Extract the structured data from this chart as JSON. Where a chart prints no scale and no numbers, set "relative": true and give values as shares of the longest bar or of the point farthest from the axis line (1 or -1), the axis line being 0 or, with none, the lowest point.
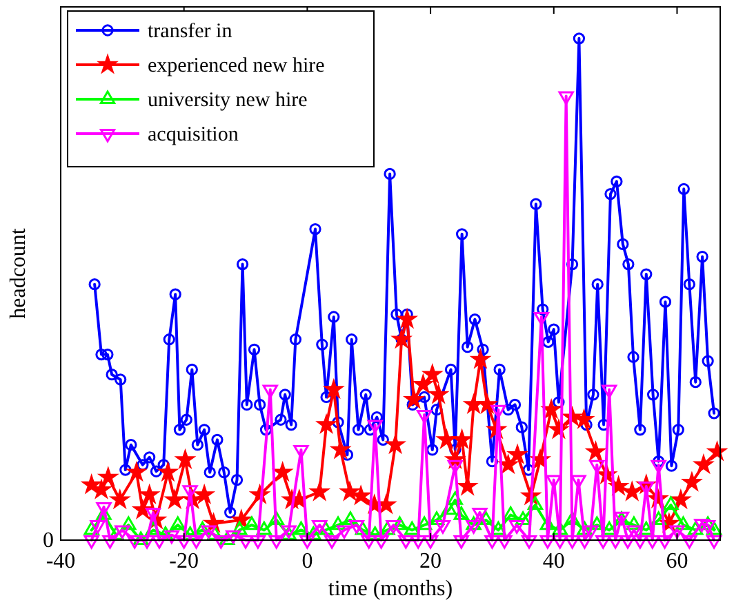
{
  "chart_data": {
    "type": "line",
    "xlabel": "time (months)",
    "ylabel": "headcount",
    "relative": true,
    "xlim": [
      -40,
      67
    ],
    "xticks": [
      -40,
      -20,
      0,
      20,
      40,
      60
    ],
    "annotations": [
      "0"
    ],
    "grid": false,
    "legend": "top left",
    "line_style": "solid",
    "series": [
      {
        "name": "transfer in",
        "color": "#0000ff",
        "marker": "circle",
        "x": [
          -34.5,
          -33.4,
          -32.4,
          -31.7,
          -30.3,
          -29.5,
          -28.6,
          -26.7,
          -25.6,
          -24.5,
          -23.3,
          -22.4,
          -21.4,
          -20.7,
          -19.6,
          -18.7,
          -17.8,
          -16.7,
          -15.8,
          -14.6,
          -13.5,
          -12.5,
          -11.4,
          -10.5,
          -9.8,
          -8.6,
          -7.7,
          -6.7,
          -4.3,
          -3.6,
          -2.6,
          -1.9,
          1.3,
          2.4,
          3.1,
          4.3,
          5,
          6.5,
          7.2,
          8.3,
          9.5,
          10.2,
          11.3,
          12.3,
          13.4,
          14.5,
          15.3,
          16.2,
          17.1,
          19,
          20.3,
          21,
          23.3,
          24,
          25.1,
          26,
          27.2,
          28.5,
          30,
          31.2,
          32.6,
          33.7,
          34.8,
          35.9,
          37.1,
          38.2,
          39.1,
          40,
          40.8,
          43,
          44.1,
          45.3,
          46.4,
          47.1,
          48.1,
          49.2,
          50.2,
          51.2,
          52.1,
          52.9,
          54,
          55,
          56.1,
          57,
          58.1,
          59.1,
          60.2,
          61.1,
          62,
          63,
          64.1,
          65,
          66
        ],
        "values": [
          0.51,
          0.37,
          0.37,
          0.33,
          0.32,
          0.14,
          0.19,
          0.15,
          0.165,
          0.137,
          0.15,
          0.4,
          0.49,
          0.22,
          0.24,
          0.34,
          0.19,
          0.22,
          0.135,
          0.2,
          0.135,
          0.055,
          0.12,
          0.55,
          0.27,
          0.38,
          0.27,
          0.22,
          0.24,
          0.29,
          0.23,
          0.4,
          0.62,
          0.39,
          0.285,
          0.445,
          0.235,
          0.17,
          0.4,
          0.22,
          0.29,
          0.22,
          0.245,
          0.2,
          0.73,
          0.45,
          0.4,
          0.45,
          0.27,
          0.285,
          0.18,
          0.26,
          0.34,
          0.18,
          0.61,
          0.385,
          0.44,
          0.38,
          0.157,
          0.34,
          0.26,
          0.27,
          0.225,
          0.14,
          0.67,
          0.46,
          0.395,
          0.42,
          0.275,
          0.55,
          1.0,
          0.23,
          0.29,
          0.51,
          0.23,
          0.69,
          0.715,
          0.59,
          0.55,
          0.365,
          0.22,
          0.53,
          0.29,
          0.157,
          0.475,
          0.148,
          0.22,
          0.7,
          0.51,
          0.315,
          0.565,
          0.357,
          0.253
        ]
      },
      {
        "name": "experienced new hire",
        "color": "#ff0000",
        "marker": "star",
        "x": [
          -35,
          -33.4,
          -32.3,
          -30.4,
          -27.7,
          -26.7,
          -25.6,
          -24.5,
          -22.6,
          -21.5,
          -19.8,
          -18.6,
          -16.7,
          -15.2,
          -10.7,
          -7.7,
          -4,
          -2.5,
          -1.3,
          2,
          3.1,
          4.3,
          5.4,
          6.9,
          8.7,
          10.9,
          12.8,
          14.3,
          15.3,
          16.2,
          17.3,
          18.8,
          20.3,
          21.3,
          22.6,
          24,
          25.1,
          26,
          27,
          28.1,
          29.2,
          30.7,
          32.6,
          34.1,
          36.3,
          37.8,
          39.6,
          40.8,
          43,
          44.9,
          46.8,
          48.6,
          50.5,
          52.7,
          55,
          56.9,
          58.7,
          60.6,
          62.4,
          64.3,
          66.5
        ],
        "values": [
          0.11,
          0.1,
          0.125,
          0.08,
          0.135,
          0.06,
          0.09,
          0.04,
          0.135,
          0.08,
          0.16,
          0.08,
          0.09,
          0.033,
          0.04,
          0.09,
          0.135,
          0.08,
          0.08,
          0.096,
          0.23,
          0.3,
          0.18,
          0.096,
          0.088,
          0.07,
          0.07,
          0.19,
          0.4,
          0.44,
          0.28,
          0.31,
          0.33,
          0.29,
          0.2,
          0.16,
          0.2,
          0.107,
          0.27,
          0.36,
          0.27,
          0.22,
          0.15,
          0.17,
          0.088,
          0.16,
          0.26,
          0.22,
          0.245,
          0.24,
          0.176,
          0.13,
          0.107,
          0.096,
          0.11,
          0.082,
          0.033,
          0.08,
          0.115,
          0.15,
          0.176
        ]
      },
      {
        "name": "university new hire",
        "color": "#00ff00",
        "marker": "triangle",
        "x": [
          -35,
          -33,
          -31,
          -29,
          -27,
          -25,
          -23,
          -21,
          -19,
          -17,
          -15,
          -13,
          -11,
          -9,
          -7,
          -5,
          -3,
          -1,
          1,
          3,
          5,
          7,
          9,
          11,
          13,
          15,
          17,
          19,
          21,
          23,
          24,
          25,
          27,
          29,
          31,
          33,
          35,
          37,
          39,
          41,
          43,
          45,
          47,
          49,
          51,
          53,
          55,
          57,
          59,
          61,
          63,
          65,
          66
        ],
        "values": [
          0.02,
          0.05,
          0.01,
          0.03,
          0,
          0.02,
          0.01,
          0.03,
          0.01,
          0.02,
          0.01,
          0,
          0.02,
          0.03,
          0.02,
          0.04,
          0.01,
          0.02,
          0.01,
          0.02,
          0.03,
          0.04,
          0.02,
          0.01,
          0.02,
          0.03,
          0.02,
          0.03,
          0.04,
          0.06,
          0.08,
          0.05,
          0.03,
          0.04,
          0.02,
          0.05,
          0.04,
          0.07,
          0.03,
          0.02,
          0.04,
          0.02,
          0.03,
          0.02,
          0.04,
          0.03,
          0.02,
          0.04,
          0.07,
          0.03,
          0.02,
          0.03,
          0.02
        ]
      },
      {
        "name": "acquisition",
        "color": "#ff00ff",
        "marker": "triangle-down",
        "x": [
          -35,
          -34,
          -33,
          -32,
          -30,
          -28,
          -26,
          -25,
          -24,
          -22,
          -20,
          -19,
          -18,
          -16,
          -14,
          -12,
          -10,
          -8,
          -6,
          -5,
          -3,
          -1,
          0,
          2,
          4,
          6,
          8,
          10,
          11,
          12,
          14,
          16,
          18,
          19,
          20,
          22,
          24,
          25,
          27,
          28,
          30,
          31,
          32,
          34,
          36,
          38,
          39,
          40,
          41,
          42,
          43,
          44,
          45,
          46,
          47,
          48,
          49,
          50,
          51,
          52,
          53,
          54,
          55,
          56,
          57,
          58,
          60,
          62,
          64,
          65,
          66
        ],
        "values": [
          0,
          0.03,
          0.066,
          0,
          0.02,
          0,
          0,
          0.055,
          0,
          0.01,
          0,
          0.1,
          0,
          0.02,
          0,
          0.01,
          0,
          0,
          0.3,
          0,
          0.02,
          0.18,
          0,
          0.03,
          0,
          0.02,
          0.03,
          0,
          0.23,
          0,
          0.03,
          0,
          0,
          0.25,
          0,
          0.03,
          0.15,
          0,
          0.03,
          0.055,
          0,
          0.26,
          0,
          0.03,
          0,
          0.445,
          0,
          0.12,
          0,
          0.885,
          0,
          0.12,
          0,
          0.02,
          0.15,
          0,
          0.3,
          0,
          0.047,
          0,
          0.02,
          0,
          0.107,
          0,
          0.15,
          0,
          0.02,
          0,
          0.033,
          0.03,
          0
        ]
      }
    ]
  }
}
